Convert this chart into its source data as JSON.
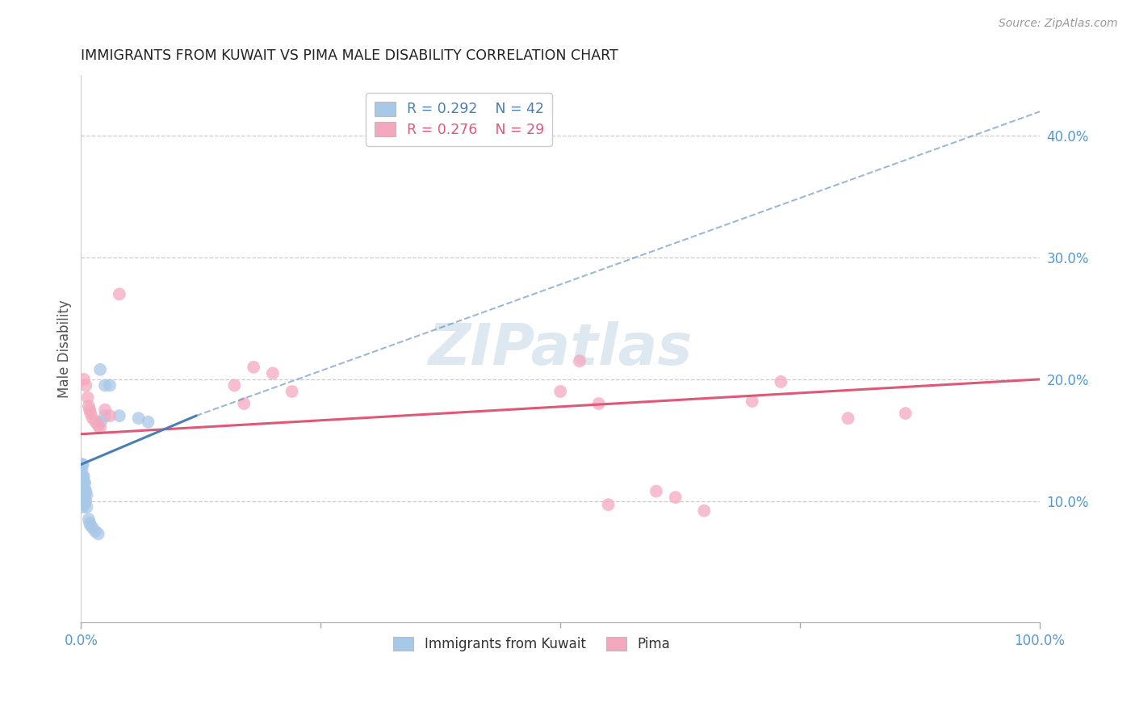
{
  "title": "IMMIGRANTS FROM KUWAIT VS PIMA MALE DISABILITY CORRELATION CHART",
  "source": "Source: ZipAtlas.com",
  "ylabel_label": "Male Disability",
  "x_min": 0.0,
  "x_max": 1.0,
  "y_min": 0.0,
  "y_max": 0.45,
  "legend_blue_label": "Immigrants from Kuwait",
  "legend_pink_label": "Pima",
  "r_blue": 0.292,
  "n_blue": 42,
  "r_pink": 0.276,
  "n_pink": 29,
  "blue_color": "#a8c8e8",
  "pink_color": "#f4a8be",
  "blue_line_color": "#4a7fb5",
  "pink_line_color": "#e05878",
  "blue_scatter": [
    [
      0.001,
      0.13
    ],
    [
      0.001,
      0.125
    ],
    [
      0.001,
      0.12
    ],
    [
      0.001,
      0.115
    ],
    [
      0.001,
      0.11
    ],
    [
      0.001,
      0.108
    ],
    [
      0.001,
      0.105
    ],
    [
      0.001,
      0.1
    ],
    [
      0.002,
      0.13
    ],
    [
      0.002,
      0.12
    ],
    [
      0.002,
      0.115
    ],
    [
      0.002,
      0.11
    ],
    [
      0.002,
      0.105
    ],
    [
      0.002,
      0.1
    ],
    [
      0.002,
      0.095
    ],
    [
      0.003,
      0.12
    ],
    [
      0.003,
      0.115
    ],
    [
      0.003,
      0.11
    ],
    [
      0.003,
      0.105
    ],
    [
      0.003,
      0.1
    ],
    [
      0.004,
      0.115
    ],
    [
      0.004,
      0.11
    ],
    [
      0.004,
      0.105
    ],
    [
      0.004,
      0.098
    ],
    [
      0.005,
      0.108
    ],
    [
      0.005,
      0.1
    ],
    [
      0.006,
      0.105
    ],
    [
      0.006,
      0.095
    ],
    [
      0.008,
      0.085
    ],
    [
      0.009,
      0.082
    ],
    [
      0.01,
      0.08
    ],
    [
      0.012,
      0.078
    ],
    [
      0.015,
      0.075
    ],
    [
      0.018,
      0.073
    ],
    [
      0.02,
      0.208
    ],
    [
      0.021,
      0.165
    ],
    [
      0.025,
      0.195
    ],
    [
      0.025,
      0.17
    ],
    [
      0.03,
      0.195
    ],
    [
      0.04,
      0.17
    ],
    [
      0.06,
      0.168
    ],
    [
      0.07,
      0.165
    ]
  ],
  "pink_scatter": [
    [
      0.003,
      0.2
    ],
    [
      0.005,
      0.195
    ],
    [
      0.007,
      0.185
    ],
    [
      0.008,
      0.178
    ],
    [
      0.009,
      0.175
    ],
    [
      0.01,
      0.172
    ],
    [
      0.012,
      0.168
    ],
    [
      0.015,
      0.165
    ],
    [
      0.018,
      0.162
    ],
    [
      0.02,
      0.16
    ],
    [
      0.025,
      0.175
    ],
    [
      0.03,
      0.17
    ],
    [
      0.04,
      0.27
    ],
    [
      0.16,
      0.195
    ],
    [
      0.17,
      0.18
    ],
    [
      0.18,
      0.21
    ],
    [
      0.2,
      0.205
    ],
    [
      0.22,
      0.19
    ],
    [
      0.5,
      0.19
    ],
    [
      0.52,
      0.215
    ],
    [
      0.54,
      0.18
    ],
    [
      0.55,
      0.097
    ],
    [
      0.6,
      0.108
    ],
    [
      0.62,
      0.103
    ],
    [
      0.65,
      0.092
    ],
    [
      0.7,
      0.182
    ],
    [
      0.73,
      0.198
    ],
    [
      0.8,
      0.168
    ],
    [
      0.86,
      0.172
    ]
  ],
  "blue_line": [
    [
      0.0,
      0.13
    ],
    [
      0.12,
      0.17
    ]
  ],
  "blue_dashed_line": [
    [
      0.12,
      0.17
    ],
    [
      1.0,
      0.42
    ]
  ],
  "pink_line": [
    [
      0.0,
      0.155
    ],
    [
      1.0,
      0.2
    ]
  ],
  "background_color": "#ffffff",
  "grid_color": "#cccccc",
  "title_color": "#222222",
  "axis_label_color": "#5599cc",
  "watermark_text": "ZIPatlas",
  "watermark_color": "#dde8f0",
  "watermark_fontsize": 52
}
